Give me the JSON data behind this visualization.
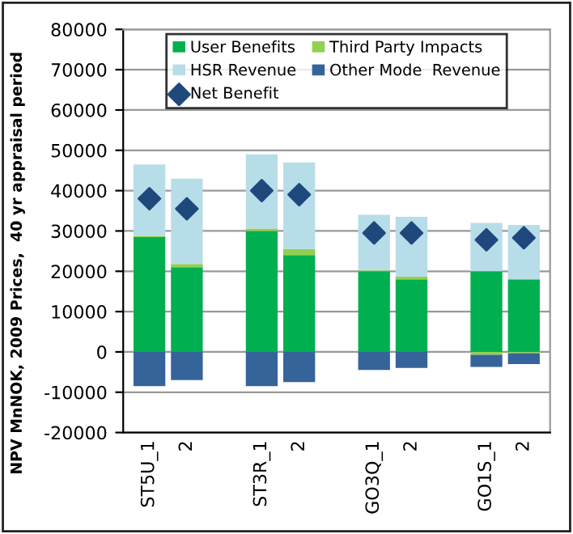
{
  "chart_data": {
    "type": "bar",
    "stacked": true,
    "ylabel": "NPV MnNOK, 2009 Prices,  40 yr appraisal period",
    "categories": [
      "ST5U_1",
      "2",
      null,
      "ST3R_1",
      "2",
      null,
      "GO3Q_1",
      "2",
      null,
      "GO1S_1",
      "2"
    ],
    "series": [
      {
        "name": "User Benefits",
        "color": "#00b050",
        "values": [
          28500,
          21000,
          null,
          30000,
          24000,
          null,
          20000,
          18000,
          null,
          20000,
          18000
        ]
      },
      {
        "name": "Third Party Impacts",
        "color": "#92d050",
        "values": [
          300,
          800,
          null,
          600,
          1500,
          null,
          200,
          700,
          null,
          -700,
          -300
        ]
      },
      {
        "name": "HSR Revenue",
        "color": "#b7dde8",
        "values": [
          17700,
          21200,
          null,
          18400,
          21500,
          null,
          13800,
          14800,
          null,
          12000,
          13500
        ]
      },
      {
        "name": "Other Mode  Revenue",
        "color": "#35649a",
        "values": [
          -8500,
          -7000,
          null,
          -8500,
          -7500,
          null,
          -4500,
          -4000,
          null,
          -3000,
          -2700
        ]
      },
      {
        "name": "Net Benefit",
        "type": "scatter",
        "marker": "diamond",
        "color": "#1f497d",
        "values": [
          38000,
          35500,
          null,
          40000,
          39000,
          null,
          29500,
          29500,
          null,
          27800,
          28300
        ]
      }
    ],
    "ylim": [
      -20000,
      80000
    ],
    "yticks": [
      -20000,
      -10000,
      0,
      10000,
      20000,
      30000,
      40000,
      50000,
      60000,
      70000,
      80000
    ],
    "grid": "y",
    "legend": "top"
  }
}
